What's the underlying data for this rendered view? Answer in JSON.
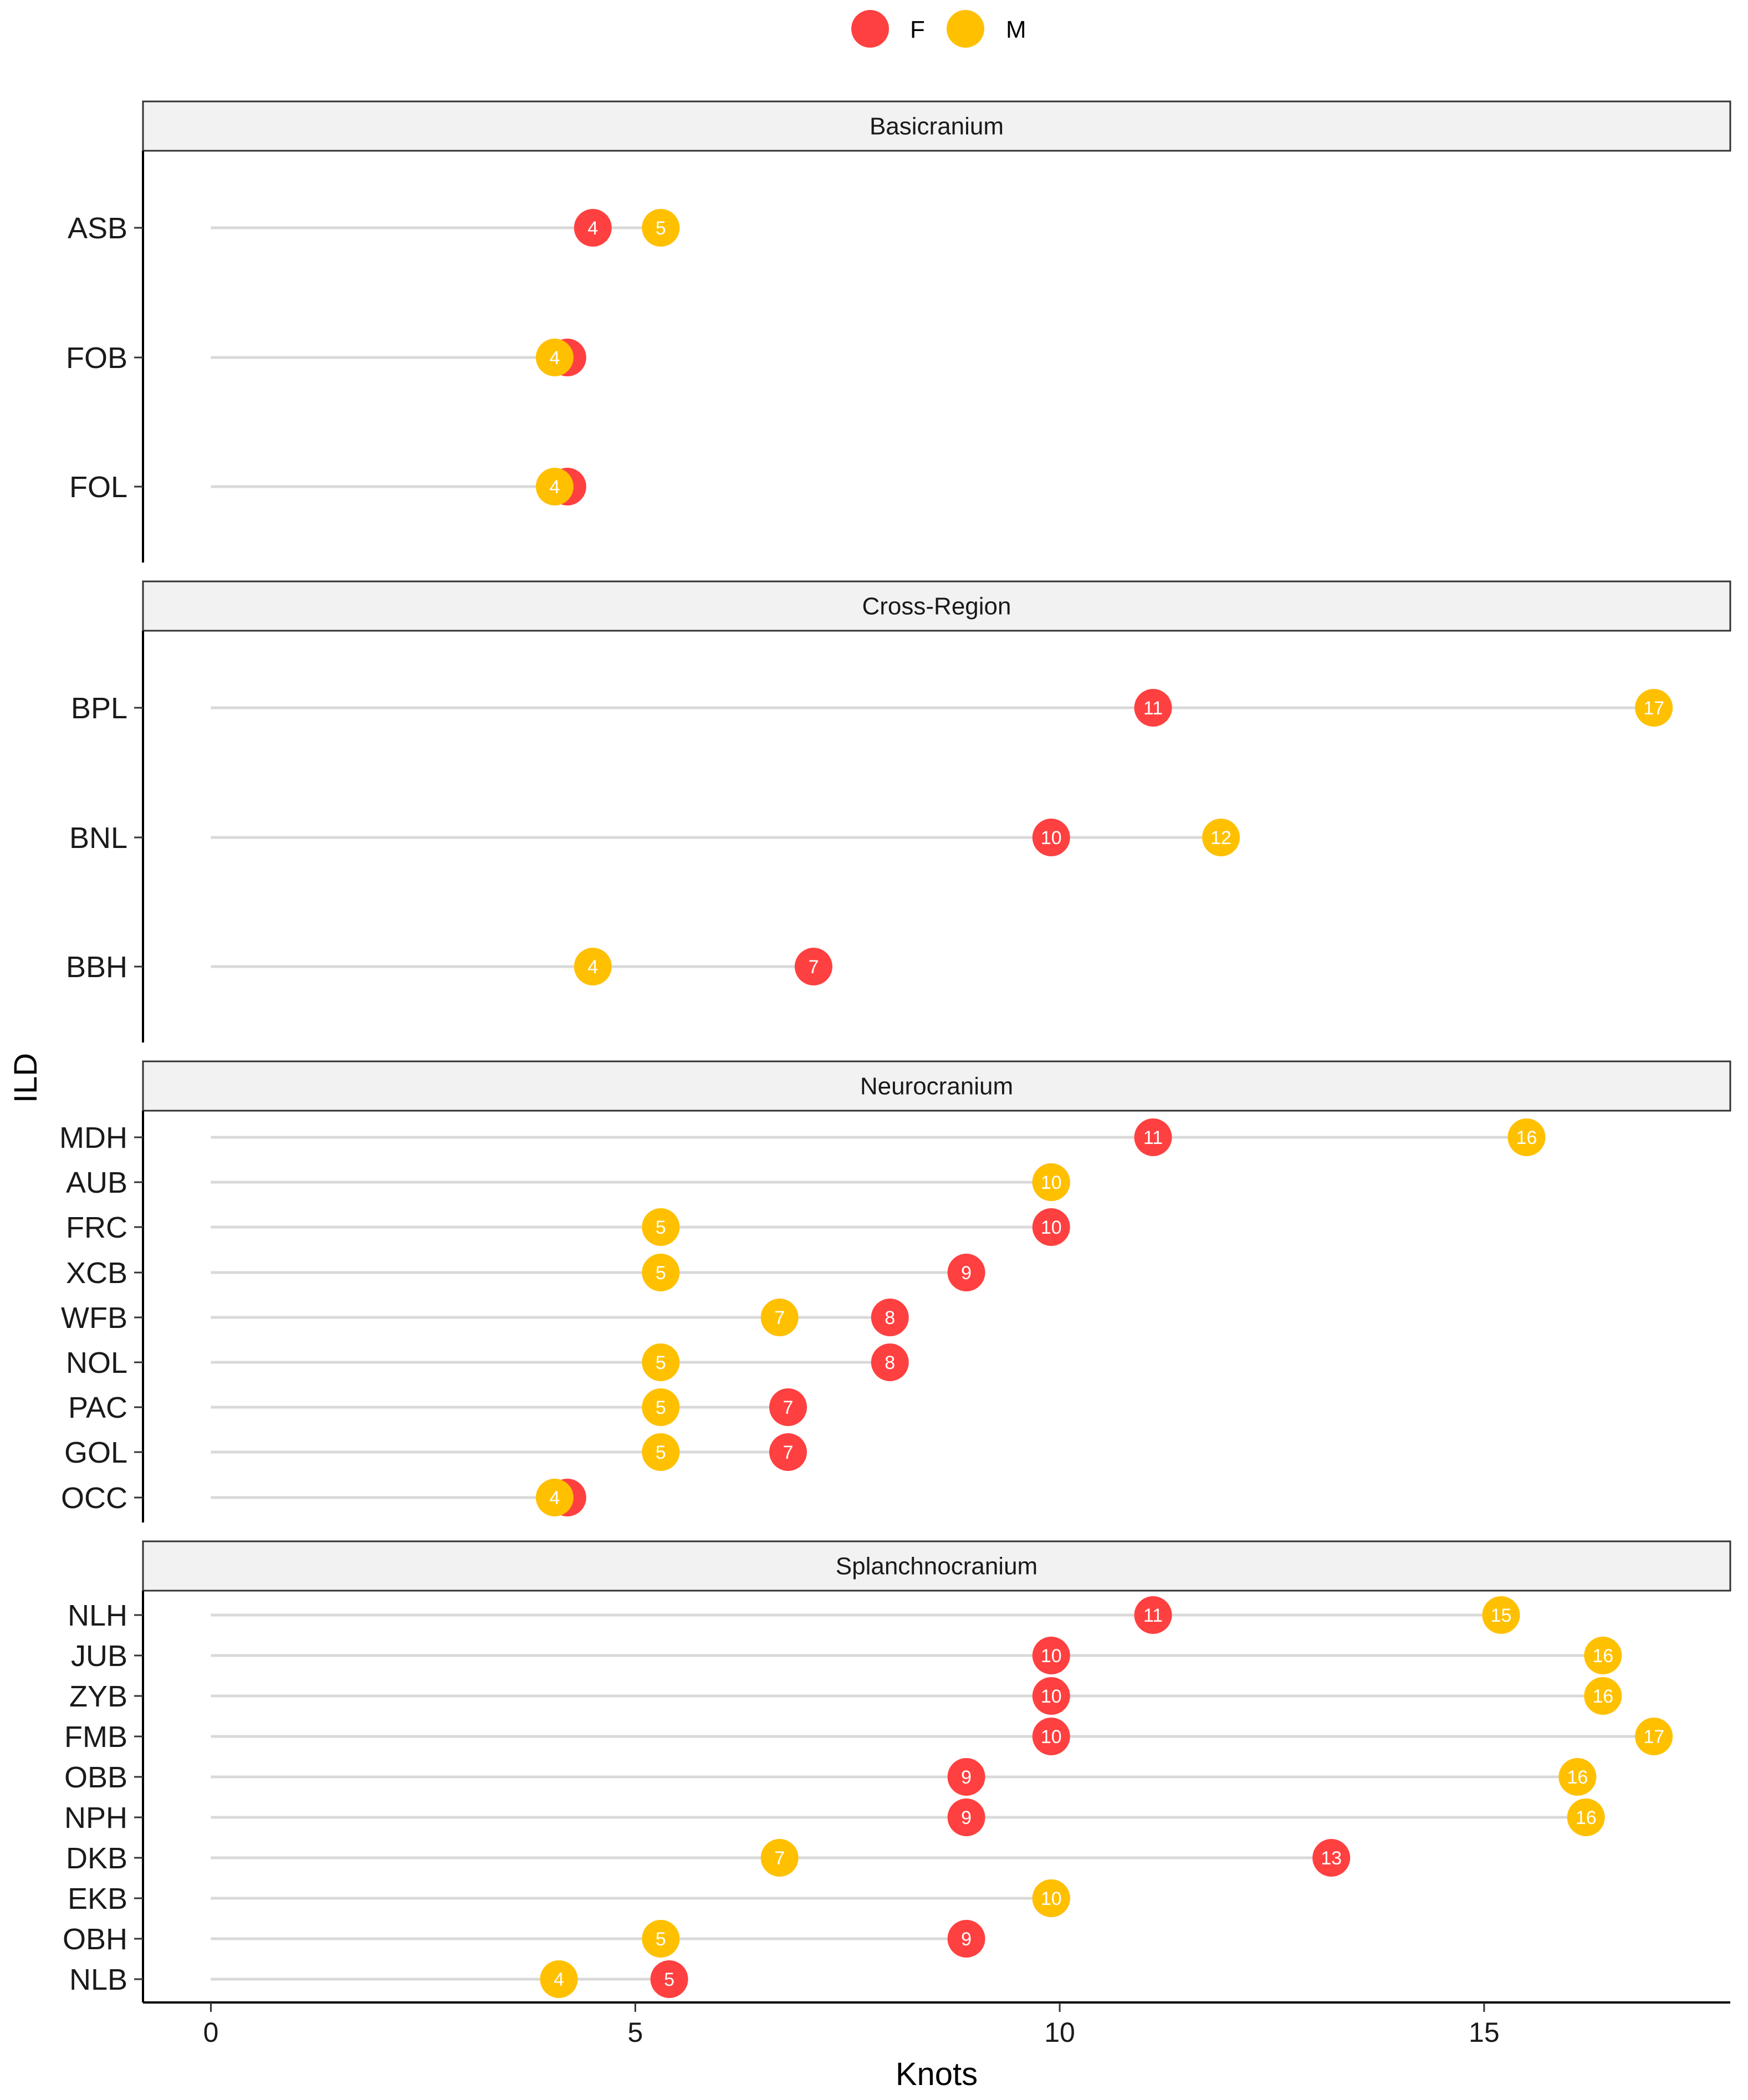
{
  "chart_data": {
    "type": "dot",
    "xlabel": "Knots",
    "ylabel": "ILD",
    "xlim": [
      -0.8,
      17.9
    ],
    "xticks": [
      0,
      5,
      10,
      15
    ],
    "legend": {
      "position": "top",
      "entries": [
        {
          "key": "F",
          "label": "F",
          "color": "#ff4040"
        },
        {
          "key": "M",
          "label": "M",
          "color": "#ffc000"
        }
      ]
    },
    "panels": [
      {
        "title": "Basicranium",
        "rows": [
          {
            "label": "ASB",
            "F": 4,
            "M": 5,
            "fx": 4.5,
            "mx": 5.3
          },
          {
            "label": "FOB",
            "F": 4,
            "M": 4,
            "fx": 4.2,
            "mx": 4.05
          },
          {
            "label": "FOL",
            "F": 4,
            "M": 4,
            "fx": 4.2,
            "mx": 4.05
          }
        ]
      },
      {
        "title": "Cross-Region",
        "rows": [
          {
            "label": "BPL",
            "F": 11,
            "M": 17,
            "fx": 11.1,
            "mx": 17.0
          },
          {
            "label": "BNL",
            "F": 10,
            "M": 12,
            "fx": 9.9,
            "mx": 11.9
          },
          {
            "label": "BBH",
            "F": 7,
            "M": 4,
            "fx": 7.1,
            "mx": 4.5
          }
        ]
      },
      {
        "title": "Neurocranium",
        "rows": [
          {
            "label": "MDH",
            "F": 11,
            "M": 16,
            "fx": 11.1,
            "mx": 15.5
          },
          {
            "label": "AUB",
            "F": 10,
            "M": 10,
            "fx": 9.9,
            "mx": 9.9
          },
          {
            "label": "FRC",
            "F": 10,
            "M": 5,
            "fx": 9.9,
            "mx": 5.3
          },
          {
            "label": "XCB",
            "F": 9,
            "M": 5,
            "fx": 8.9,
            "mx": 5.3
          },
          {
            "label": "WFB",
            "F": 8,
            "M": 7,
            "fx": 8.0,
            "mx": 6.7
          },
          {
            "label": "NOL",
            "F": 8,
            "M": 5,
            "fx": 8.0,
            "mx": 5.3
          },
          {
            "label": "PAC",
            "F": 7,
            "M": 5,
            "fx": 6.8,
            "mx": 5.3
          },
          {
            "label": "GOL",
            "F": 7,
            "M": 5,
            "fx": 6.8,
            "mx": 5.3
          },
          {
            "label": "OCC",
            "F": 4,
            "M": 4,
            "fx": 4.2,
            "mx": 4.05
          }
        ]
      },
      {
        "title": "Splanchnocranium",
        "rows": [
          {
            "label": "NLH",
            "F": 11,
            "M": 15,
            "fx": 11.1,
            "mx": 15.2
          },
          {
            "label": "JUB",
            "F": 10,
            "M": 16,
            "fx": 9.9,
            "mx": 16.4
          },
          {
            "label": "ZYB",
            "F": 10,
            "M": 16,
            "fx": 9.9,
            "mx": 16.4
          },
          {
            "label": "FMB",
            "F": 10,
            "M": 17,
            "fx": 9.9,
            "mx": 17.0
          },
          {
            "label": "OBB",
            "F": 9,
            "M": 16,
            "fx": 8.9,
            "mx": 16.1
          },
          {
            "label": "NPH",
            "F": 9,
            "M": 16,
            "fx": 8.9,
            "mx": 16.2
          },
          {
            "label": "DKB",
            "F": 13,
            "M": 7,
            "fx": 13.2,
            "mx": 6.7
          },
          {
            "label": "EKB",
            "F": 10,
            "M": 10,
            "fx": 9.9,
            "mx": 9.9
          },
          {
            "label": "OBH",
            "F": 9,
            "M": 5,
            "fx": 8.9,
            "mx": 5.3
          },
          {
            "label": "NLB",
            "F": 5,
            "M": 4,
            "fx": 5.4,
            "mx": 4.1
          }
        ]
      }
    ]
  }
}
